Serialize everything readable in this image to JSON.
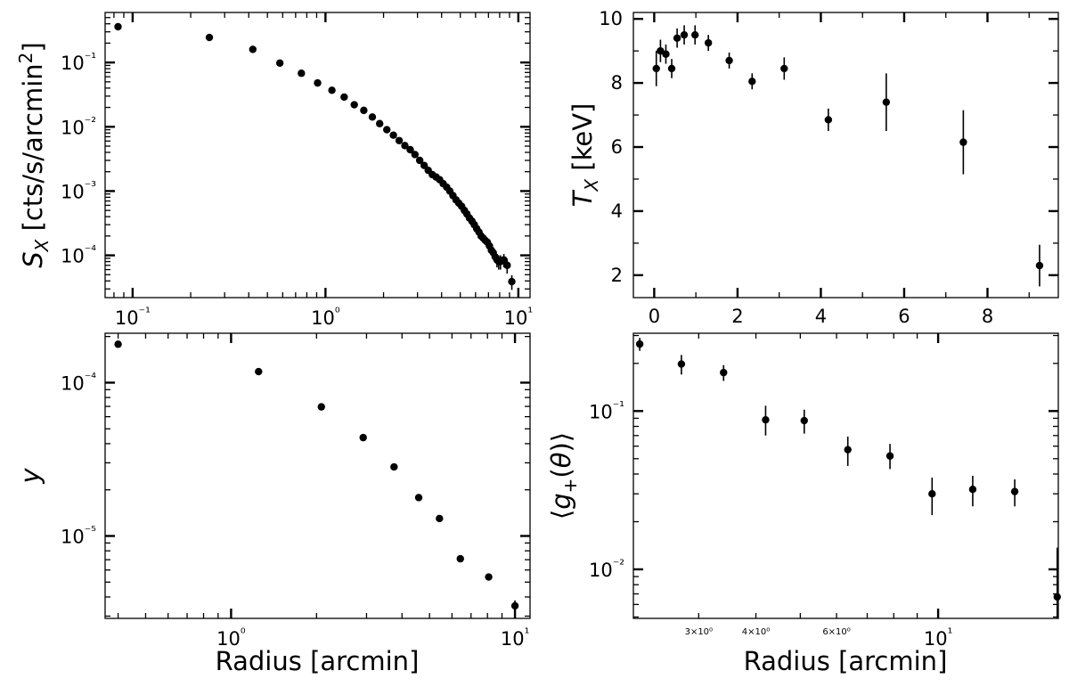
{
  "chart_data": [
    {
      "id": "sx",
      "type": "scatter",
      "ylabel": "S_X [cts/s/arcmin²]",
      "xlabel": "",
      "xscale": "log",
      "yscale": "log",
      "xlim": [
        0.072,
        11.5
      ],
      "ylim": [
        2.2e-05,
        0.6
      ],
      "x_tick_labels": [
        "10⁻¹",
        "10⁰",
        "10¹"
      ],
      "y_tick_labels": [
        "10⁻⁴",
        "10⁻³",
        "10⁻²",
        "10⁻¹"
      ],
      "x": [
        0.084,
        0.25,
        0.42,
        0.58,
        0.75,
        0.91,
        1.08,
        1.25,
        1.41,
        1.58,
        1.75,
        1.91,
        2.08,
        2.25,
        2.41,
        2.58,
        2.75,
        2.91,
        3.08,
        3.25,
        3.41,
        3.58,
        3.75,
        3.91,
        4.08,
        4.25,
        4.41,
        4.58,
        4.75,
        4.91,
        5.08,
        5.25,
        5.41,
        5.58,
        5.75,
        5.91,
        6.08,
        6.25,
        6.41,
        6.58,
        6.75,
        6.91,
        7.08,
        7.25,
        7.41,
        7.58,
        7.75,
        7.91,
        8.08,
        8.41,
        8.75,
        9.25
      ],
      "y": [
        0.36,
        0.245,
        0.16,
        0.098,
        0.068,
        0.048,
        0.037,
        0.029,
        0.022,
        0.018,
        0.0142,
        0.0112,
        0.009,
        0.0074,
        0.0061,
        0.0051,
        0.0044,
        0.0037,
        0.003,
        0.0025,
        0.0021,
        0.0018,
        0.00165,
        0.0015,
        0.0013,
        0.00115,
        0.001,
        0.00085,
        0.00073,
        0.00065,
        0.00058,
        0.0005,
        0.00044,
        0.00038,
        0.00034,
        0.0003,
        0.00026,
        0.00023,
        0.0002,
        0.000185,
        0.00017,
        0.00016,
        0.00014,
        0.00012,
        0.00011,
        9.5e-05,
        8.5e-05,
        8e-05,
        8e-05,
        8.5e-05,
        7e-05,
        3.9e-05
      ],
      "yerr_lo": [
        0,
        0,
        0,
        0,
        0,
        0,
        0,
        0,
        0,
        0,
        0,
        0,
        0,
        0,
        0,
        0,
        0,
        0,
        0,
        0,
        0,
        0,
        0,
        0,
        0,
        0,
        0,
        0,
        0,
        0,
        0,
        0,
        0,
        0,
        0,
        0,
        0,
        0,
        0,
        0,
        0,
        0,
        0,
        0,
        0,
        1.5e-05,
        2e-05,
        2e-05,
        2e-05,
        2e-05,
        1.8e-05,
        1e-05
      ],
      "yerr_hi": [
        0,
        0,
        0,
        0,
        0,
        0,
        0,
        0,
        0,
        0,
        0,
        0,
        0,
        0,
        0,
        0,
        0,
        0,
        0,
        0,
        0,
        0,
        0,
        0,
        0,
        0,
        0,
        0,
        0,
        0,
        0,
        0,
        0,
        0,
        0,
        0,
        0,
        0,
        0,
        0,
        0,
        0,
        0,
        0,
        0,
        1.5e-05,
        2e-05,
        2e-05,
        2e-05,
        2e-05,
        1.8e-05,
        1e-05
      ]
    },
    {
      "id": "tx",
      "type": "scatter",
      "ylabel": "T_X [keV]",
      "xlabel": "",
      "xscale": "linear",
      "yscale": "linear",
      "xlim": [
        -0.5,
        9.7
      ],
      "ylim": [
        1.3,
        10.2
      ],
      "xticks": [
        0,
        2,
        4,
        6,
        8
      ],
      "yticks": [
        2,
        4,
        6,
        8,
        10
      ],
      "x": [
        0.05,
        0.15,
        0.28,
        0.42,
        0.55,
        0.72,
        0.98,
        1.3,
        1.8,
        2.35,
        3.12,
        4.18,
        5.57,
        7.42,
        9.25
      ],
      "y": [
        8.45,
        9.0,
        8.9,
        8.45,
        9.4,
        9.5,
        9.5,
        9.25,
        8.7,
        8.05,
        8.45,
        6.85,
        7.4,
        6.15,
        2.3
      ],
      "yerr_lo": [
        0.55,
        0.35,
        0.3,
        0.3,
        0.3,
        0.3,
        0.3,
        0.25,
        0.25,
        0.25,
        0.35,
        0.35,
        0.9,
        1.0,
        0.65
      ],
      "yerr_hi": [
        0.55,
        0.35,
        0.3,
        0.3,
        0.3,
        0.3,
        0.3,
        0.25,
        0.25,
        0.25,
        0.35,
        0.35,
        0.9,
        1.0,
        0.65
      ]
    },
    {
      "id": "y",
      "type": "scatter",
      "ylabel": "y",
      "xlabel": "Radius [arcmin]",
      "xscale": "log",
      "yscale": "log",
      "xlim": [
        0.36,
        11.3
      ],
      "ylim": [
        2.9e-06,
        0.00021
      ],
      "x_tick_labels": [
        "10⁰",
        "10¹"
      ],
      "y_tick_labels": [
        "10⁻⁵",
        "10⁻⁴"
      ],
      "x": [
        0.4,
        1.25,
        2.08,
        2.92,
        3.75,
        4.58,
        5.42,
        6.42,
        8.08,
        10.0
      ],
      "y": [
        0.000178,
        0.000118,
        6.95e-05,
        4.38e-05,
        2.82e-05,
        1.78e-05,
        1.3e-05,
        7.1e-06,
        5.4e-06,
        3.5e-06
      ],
      "yerr_lo": [
        0,
        0,
        0,
        0,
        0,
        0,
        0,
        0,
        0,
        3e-07
      ],
      "yerr_hi": [
        0,
        0,
        0,
        0,
        0,
        0,
        0,
        0,
        0,
        3e-07
      ]
    },
    {
      "id": "gt",
      "type": "scatter",
      "ylabel": "⟨g₊(θ)⟩",
      "xlabel": "Radius [arcmin]",
      "xscale": "log",
      "yscale": "log",
      "xlim": [
        2.16,
        18.3
      ],
      "ylim": [
        0.0049,
        0.31
      ],
      "x_minor_labels": [
        "3×10⁰",
        "4×10⁰",
        "6×10⁰"
      ],
      "x_tick_labels": [
        "10¹"
      ],
      "y_tick_labels": [
        "10⁻²",
        "10⁻¹"
      ],
      "x": [
        2.23,
        2.75,
        3.4,
        4.2,
        5.1,
        6.35,
        7.85,
        9.7,
        11.9,
        14.7,
        18.2
      ],
      "y": [
        0.265,
        0.198,
        0.175,
        0.088,
        0.087,
        0.057,
        0.052,
        0.03,
        0.032,
        0.031,
        0.0067
      ],
      "yerr_lo": [
        0.025,
        0.028,
        0.02,
        0.018,
        0.015,
        0.012,
        0.009,
        0.008,
        0.007,
        0.006,
        0.0022
      ],
      "yerr_hi": [
        0.025,
        0.028,
        0.02,
        0.02,
        0.015,
        0.012,
        0.01,
        0.008,
        0.007,
        0.006,
        0.007
      ]
    }
  ]
}
